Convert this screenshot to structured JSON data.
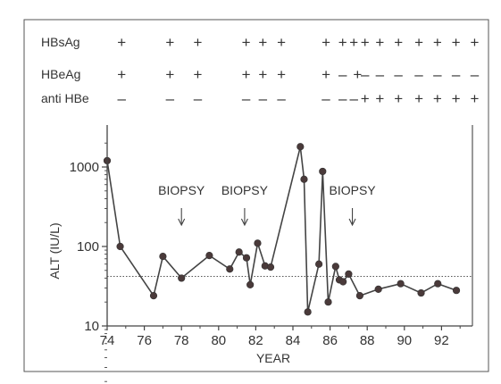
{
  "chart_data": {
    "type": "line",
    "xlabel": "YEAR",
    "ylabel": "ALT  (IU/L)",
    "xlim": [
      74,
      93.2
    ],
    "ylim": [
      10,
      3000
    ],
    "yscale": "log",
    "xticks": [
      "74",
      "76",
      "78",
      "80",
      "82",
      "84",
      "86",
      "88",
      "90",
      "92"
    ],
    "yticks": [
      "10",
      "100",
      "1000"
    ],
    "reference_line": {
      "y": 42,
      "style": "dotted"
    },
    "series": [
      {
        "x": [
          74.0,
          74.7,
          76.5,
          77.0,
          78.0,
          79.5,
          80.6,
          81.1,
          81.5,
          81.7,
          82.1,
          82.5,
          82.8,
          84.4,
          84.6,
          84.8,
          85.4,
          85.6,
          85.9,
          86.3,
          86.5,
          86.7,
          87.0,
          87.6,
          88.6,
          89.8,
          90.9,
          91.8,
          92.8
        ],
        "y": [
          1200,
          100,
          24,
          75,
          40,
          77,
          52,
          85,
          72,
          33,
          110,
          57,
          55,
          1800,
          700,
          15,
          60,
          880,
          20,
          56,
          38,
          36,
          45,
          24,
          29,
          34,
          26,
          34,
          28
        ]
      }
    ],
    "annotations": [
      {
        "text": "BIOPSY",
        "x": 78.0,
        "arrow": true
      },
      {
        "text": "BIOPSY",
        "x": 81.4,
        "arrow": true
      },
      {
        "text": "BIOPSY",
        "x": 87.2,
        "arrow": true
      }
    ],
    "marker_rows": [
      {
        "label": "HBsAg",
        "marks": [
          {
            "x": 74.3,
            "s": "+"
          },
          {
            "x": 76.9,
            "s": "+"
          },
          {
            "x": 78.4,
            "s": "+"
          },
          {
            "x": 81.0,
            "s": "+"
          },
          {
            "x": 81.9,
            "s": "+"
          },
          {
            "x": 82.9,
            "s": "+"
          },
          {
            "x": 85.3,
            "s": "+"
          },
          {
            "x": 86.2,
            "s": "+"
          },
          {
            "x": 86.8,
            "s": "+"
          },
          {
            "x": 87.4,
            "s": "+"
          },
          {
            "x": 88.2,
            "s": "+"
          },
          {
            "x": 89.2,
            "s": "+"
          },
          {
            "x": 90.3,
            "s": "+"
          },
          {
            "x": 91.3,
            "s": "+"
          },
          {
            "x": 92.3,
            "s": "+"
          },
          {
            "x": 93.3,
            "s": "+"
          }
        ]
      },
      {
        "label": "HBeAg",
        "marks": [
          {
            "x": 74.3,
            "s": "+"
          },
          {
            "x": 76.9,
            "s": "+"
          },
          {
            "x": 78.4,
            "s": "+"
          },
          {
            "x": 81.0,
            "s": "+"
          },
          {
            "x": 81.9,
            "s": "+"
          },
          {
            "x": 82.9,
            "s": "+"
          },
          {
            "x": 85.3,
            "s": "+"
          },
          {
            "x": 86.2,
            "s": "–"
          },
          {
            "x": 87.0,
            "s": "+"
          },
          {
            "x": 87.4,
            "s": "–"
          },
          {
            "x": 88.2,
            "s": "–"
          },
          {
            "x": 89.2,
            "s": "–"
          },
          {
            "x": 90.3,
            "s": "–"
          },
          {
            "x": 91.3,
            "s": "–"
          },
          {
            "x": 92.3,
            "s": "–"
          },
          {
            "x": 93.3,
            "s": "–"
          }
        ]
      },
      {
        "label": "anti HBe",
        "marks": [
          {
            "x": 74.3,
            "s": "–"
          },
          {
            "x": 76.9,
            "s": "–"
          },
          {
            "x": 78.4,
            "s": "–"
          },
          {
            "x": 81.0,
            "s": "–"
          },
          {
            "x": 81.9,
            "s": "–"
          },
          {
            "x": 82.9,
            "s": "–"
          },
          {
            "x": 85.3,
            "s": "–"
          },
          {
            "x": 86.2,
            "s": "–"
          },
          {
            "x": 86.8,
            "s": "–"
          },
          {
            "x": 87.4,
            "s": "+"
          },
          {
            "x": 88.2,
            "s": "+"
          },
          {
            "x": 89.2,
            "s": "+"
          },
          {
            "x": 90.3,
            "s": "+"
          },
          {
            "x": 91.3,
            "s": "+"
          },
          {
            "x": 92.3,
            "s": "+"
          },
          {
            "x": 93.3,
            "s": "+"
          }
        ]
      }
    ]
  }
}
